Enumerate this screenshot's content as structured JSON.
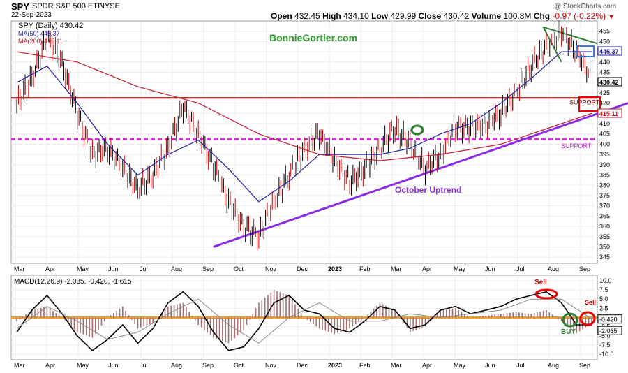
{
  "header": {
    "ticker": "SPY",
    "name": "SPDR S&P 500 ETF",
    "exchange": "NYSE",
    "date": "22-Sep-2023",
    "open_label": "Open",
    "open": "432.45",
    "high_label": "High",
    "high": "434.10",
    "low_label": "Low",
    "low": "429.99",
    "close_label": "Close",
    "close": "430.42",
    "volume_label": "Volume",
    "volume": "100.8M",
    "chg_label": "Chg",
    "chg": "-0.97 (-0.22%)",
    "chg_arrow": "▼",
    "credit": "@ StockCharts.com",
    "watermark_corner": "StockCharts.com",
    "close_icon": "close-circle-icon"
  },
  "legend": {
    "main": "SPY (Daily) 430.42",
    "ma50": "MA(50) 445.37",
    "ma200": "MA(200) 415.11",
    "ma50_color": "#1c1ca0",
    "ma200_color": "#c0202e"
  },
  "watermark": "BonnieGortler.com",
  "chart_data": [
    {
      "type": "candlestick-line",
      "title": "SPY SPDR S&P 500 ETF",
      "ylim": [
        342,
        460
      ],
      "y_ticks": [
        345,
        350,
        355,
        360,
        365,
        370,
        375,
        380,
        385,
        390,
        395,
        400,
        405,
        410,
        415,
        420,
        425,
        430,
        435,
        440,
        445,
        450,
        455
      ],
      "x_labels": [
        "Mar",
        "Apr",
        "May",
        "Jun",
        "Jul",
        "Aug",
        "Sep",
        "Oct",
        "Nov",
        "Dec",
        "2023",
        "Feb",
        "Mar",
        "Apr",
        "May",
        "Jun",
        "Jul",
        "Aug",
        "Sep"
      ],
      "grid": true,
      "series": [
        {
          "name": "SPY (Daily)",
          "x": [
            0,
            10,
            20,
            30,
            40,
            50,
            60,
            70,
            80,
            90,
            100,
            110,
            120,
            130,
            140,
            150,
            160,
            170,
            180,
            190,
            200,
            210,
            220,
            230,
            240,
            250,
            260,
            270,
            280,
            290,
            300,
            310,
            320,
            330,
            340,
            350,
            360,
            370,
            380
          ],
          "y": [
            420,
            432,
            452,
            440,
            415,
            395,
            398,
            388,
            378,
            385,
            398,
            418,
            405,
            390,
            372,
            360,
            355,
            372,
            385,
            398,
            405,
            392,
            382,
            388,
            398,
            408,
            400,
            388,
            395,
            408,
            408,
            410,
            415,
            425,
            438,
            448,
            455,
            445,
            432
          ]
        },
        {
          "name": "MA(50)",
          "value": 445.37,
          "color": "#1c1ca0",
          "x": [
            0,
            20,
            40,
            60,
            80,
            100,
            120,
            140,
            160,
            180,
            200,
            220,
            240,
            260,
            280,
            300,
            320,
            340,
            360,
            380
          ],
          "y": [
            430,
            438,
            420,
            400,
            385,
            395,
            402,
            388,
            372,
            382,
            395,
            395,
            395,
            398,
            405,
            410,
            420,
            432,
            445,
            445
          ]
        },
        {
          "name": "MA(200)",
          "value": 415.11,
          "color": "#c0202e",
          "x": [
            0,
            40,
            80,
            120,
            160,
            200,
            240,
            280,
            320,
            360,
            380
          ],
          "y": [
            445,
            440,
            428,
            420,
            405,
            395,
            392,
            395,
            400,
            410,
            415
          ]
        }
      ],
      "levels": [
        {
          "label": "SUPPORT",
          "value": 422.5,
          "color": "#8b0000",
          "style": "solid"
        },
        {
          "label": "SUPPORT",
          "value": 402.5,
          "color": "#e020e0",
          "style": "dashed"
        }
      ],
      "annotations": [
        {
          "text": "October Uptrend",
          "color": "#8a2be2"
        }
      ],
      "value_boxes": [
        {
          "text": "445.37",
          "color": "#1c1ca0"
        },
        {
          "text": "430.42",
          "color": "#000000"
        },
        {
          "text": "415.11",
          "color": "#c0202e"
        }
      ]
    },
    {
      "type": "line",
      "title": "MACD(12,26,9) -2.035, -0.420, -1.615",
      "ylim": [
        -11.5,
        11.5
      ],
      "y_ticks": [
        -10.0,
        -7.5,
        -5.0,
        -2.5,
        2.5,
        5.0,
        7.5,
        10.0
      ],
      "y_tick_labels": [
        "-10.0",
        "-7.5",
        "-5.0",
        "-2.5",
        "2.5",
        "5.0",
        "7.5",
        "10.0"
      ],
      "x_labels": [
        "Mar",
        "Apr",
        "May",
        "Jun",
        "Jul",
        "Aug",
        "Sep",
        "Oct",
        "Nov",
        "Dec",
        "2023",
        "Feb",
        "Mar",
        "Apr",
        "May",
        "Jun",
        "Jul",
        "Aug",
        "Sep"
      ],
      "series": [
        {
          "name": "MACD",
          "value": -2.035,
          "color": "#000000",
          "x": [
            0,
            10,
            20,
            30,
            40,
            50,
            60,
            70,
            80,
            90,
            100,
            110,
            120,
            130,
            140,
            150,
            160,
            170,
            180,
            190,
            200,
            210,
            220,
            230,
            240,
            250,
            260,
            270,
            280,
            290,
            300,
            310,
            320,
            330,
            340,
            350,
            360,
            370,
            380
          ],
          "y": [
            -4,
            2,
            6,
            1,
            -5,
            -9,
            -6,
            -2,
            -7,
            -3,
            4,
            7,
            3,
            -4,
            -9,
            -8,
            -3,
            4,
            6,
            2,
            1,
            -3,
            -4,
            -1,
            3,
            2,
            -3,
            -2,
            2,
            3,
            1,
            2,
            3,
            5,
            6,
            7,
            4,
            -2,
            -2
          ]
        },
        {
          "name": "Signal",
          "value": -0.42,
          "color": "#888888",
          "x": [
            0,
            20,
            40,
            60,
            80,
            100,
            120,
            140,
            160,
            180,
            200,
            220,
            240,
            260,
            280,
            300,
            320,
            340,
            360,
            380
          ],
          "y": [
            -3,
            3,
            -1,
            -6,
            -4,
            1,
            5,
            -2,
            -7,
            0,
            4,
            -1,
            -1,
            1,
            0,
            1,
            2,
            5,
            5,
            -0.4
          ]
        }
      ],
      "histogram_value": -1.615,
      "annotations": [
        {
          "text": "Sell",
          "color": "#c00000"
        },
        {
          "text": "Sell",
          "color": "#c00000"
        },
        {
          "text": "BUY",
          "color": "#2e7d32"
        }
      ],
      "value_boxes": [
        {
          "text": "-0.420",
          "color": "#000000"
        },
        {
          "text": "-2.035",
          "color": "#000000"
        }
      ]
    }
  ]
}
